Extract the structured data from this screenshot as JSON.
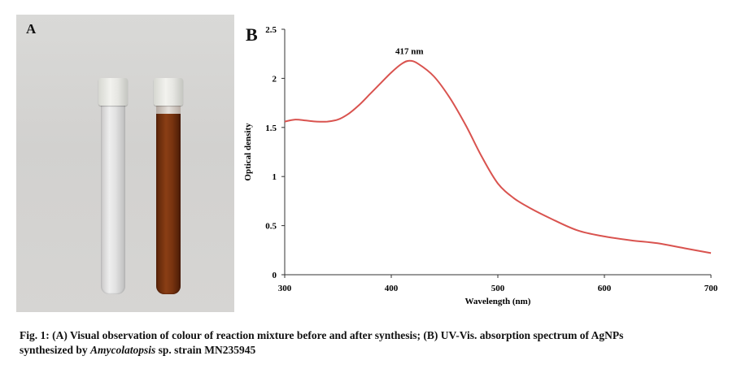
{
  "figure": {
    "panel_a_label": "A",
    "panel_b_label": "B",
    "caption_line1": "Fig. 1: (A) Visual observation of colour of reaction mixture before and after synthesis; (B) UV-Vis. absorption spectrum of AgNPs",
    "caption_line2_start": "synthesized by ",
    "caption_line2_italic": "Amycolatopsis",
    "caption_line2_end": " sp. strain MN235945"
  },
  "colors": {
    "curve": "#d9534f",
    "solution_clear": "#e8e8e8",
    "solution_brown": "#7a3410"
  },
  "chart_data": {
    "type": "line",
    "xlabel": "Wavelength (nm)",
    "ylabel": "Optical density",
    "xlim": [
      300,
      700
    ],
    "ylim": [
      0,
      2.5
    ],
    "xticks": [
      300,
      400,
      500,
      600,
      700
    ],
    "yticks": [
      0,
      0.5,
      1,
      1.5,
      2,
      2.5
    ],
    "grid": false,
    "annotation": {
      "text": "417 nm",
      "x": 417,
      "y": 2.18
    },
    "series": [
      {
        "x": [
          300,
          310,
          320,
          330,
          340,
          350,
          360,
          370,
          380,
          390,
          400,
          410,
          417,
          425,
          440,
          455,
          470,
          485,
          500,
          515,
          530,
          550,
          575,
          600,
          625,
          650,
          675,
          700
        ],
        "values": [
          1.56,
          1.58,
          1.57,
          1.56,
          1.56,
          1.58,
          1.64,
          1.73,
          1.84,
          1.95,
          2.06,
          2.15,
          2.18,
          2.15,
          2.02,
          1.8,
          1.52,
          1.2,
          0.93,
          0.78,
          0.68,
          0.57,
          0.45,
          0.39,
          0.35,
          0.32,
          0.27,
          0.22
        ]
      }
    ]
  }
}
